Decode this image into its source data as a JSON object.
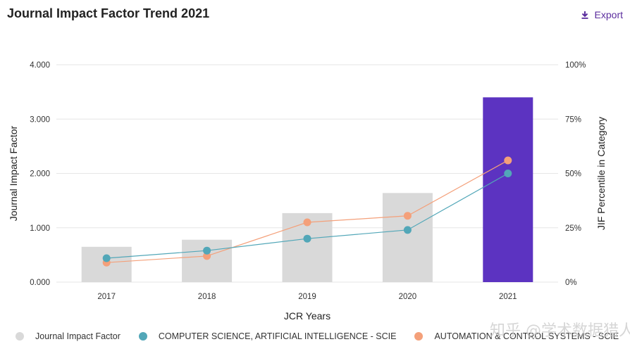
{
  "header": {
    "title": "Journal Impact Factor Trend 2021",
    "export_label": "Export",
    "export_icon": "download-icon"
  },
  "watermark": "知乎 @学术数据猎人",
  "colors": {
    "bar": "#d9d9d9",
    "bar_highlight": "#5c33c1",
    "series_cs": "#52a7b8",
    "series_auto": "#f4a07a",
    "grid": "#e6e6e6",
    "export": "#5b2d9e"
  },
  "chart_data": {
    "type": "bar",
    "title": "Journal Impact Factor Trend 2021",
    "xlabel": "JCR Years",
    "ylabel": "Journal Impact Factor",
    "y2label": "JIF Percentile in Category",
    "categories": [
      "2017",
      "2018",
      "2019",
      "2020",
      "2021"
    ],
    "ylim": [
      0,
      4
    ],
    "yticks": [
      "0.000",
      "1.000",
      "2.000",
      "3.000",
      "4.000"
    ],
    "y2lim": [
      0,
      100
    ],
    "y2ticks": [
      "0%",
      "25%",
      "50%",
      "75%",
      "100%"
    ],
    "highlight_category": "2021",
    "grid": true,
    "legend_position": "bottom",
    "bars": {
      "name": "Journal Impact Factor",
      "values": [
        0.65,
        0.78,
        1.27,
        1.64,
        3.4
      ]
    },
    "series": [
      {
        "name": "COMPUTER SCIENCE, ARTIFICIAL INTELLIGENCE - SCIE",
        "type": "line",
        "axis": "y2",
        "values": [
          11,
          14.5,
          20,
          24,
          50
        ]
      },
      {
        "name": "AUTOMATION & CONTROL SYSTEMS - SCIE",
        "type": "line",
        "axis": "y2",
        "values": [
          9,
          12,
          27.5,
          30.5,
          56
        ]
      }
    ]
  }
}
